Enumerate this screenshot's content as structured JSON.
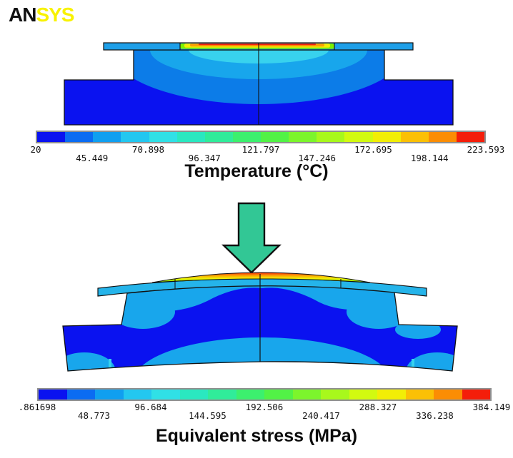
{
  "logo": {
    "part1": "AN",
    "part2": "SYS"
  },
  "palette": {
    "dark": "#0a12f0",
    "royal": "#0c7ce8",
    "sky": "#18a6ec",
    "cyan": "#38d2ee",
    "plate": "#1e9fe8",
    "plate2": "#25b4ea",
    "green": "#7df200",
    "yellow": "#f2ee06",
    "orange": "#fba204",
    "red": "#f4270c",
    "arrow": "#32c795",
    "ink": "#111111",
    "logo_yellow": "#f8f200",
    "bar_border": "#8f8f8f"
  },
  "colorbar_colors": [
    "#0a12f0",
    "#0b6cf2",
    "#109ff0",
    "#23c7f0",
    "#30e0e6",
    "#2ae8c0",
    "#30ec9a",
    "#3cf06e",
    "#52f246",
    "#7cf52c",
    "#a8f81c",
    "#d2fa10",
    "#f2ee06",
    "#fbc005",
    "#fb8d04",
    "#f41e0a"
  ],
  "temperature": {
    "caption": "Temperature (°C)",
    "scale_labels": [
      "20",
      "45.449",
      "70.898",
      "96.347",
      "121.797",
      "147.246",
      "172.695",
      "198.144",
      "223.593"
    ]
  },
  "stress": {
    "caption": "Equivalent stress (MPa)",
    "scale_labels": [
      ".861698",
      "48.773",
      "96.684",
      "144.595",
      "192.506",
      "240.417",
      "288.327",
      "336.238",
      "384.149"
    ]
  }
}
